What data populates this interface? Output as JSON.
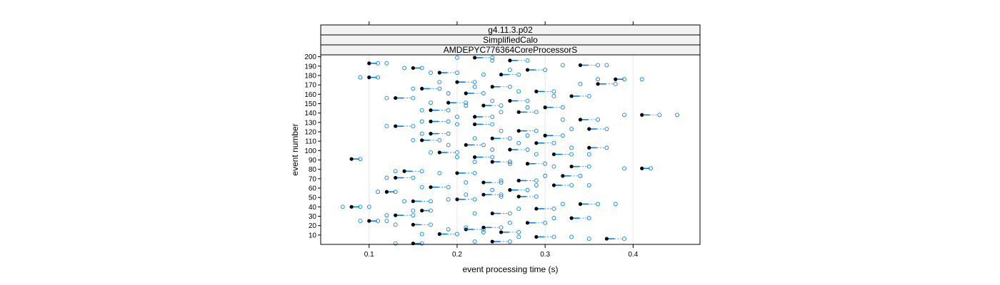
{
  "chart_data": {
    "type": "box-dot",
    "title": "",
    "strips": [
      "g4.11.3.p02",
      "SimplifiedCalo",
      "AMDEPYC776364CoreProcessorS"
    ],
    "xlabel": "event processing time (s)",
    "ylabel": "event number",
    "x_ticks": [
      0.1,
      0.2,
      0.3,
      0.4
    ],
    "y_ticks": [
      10,
      20,
      30,
      40,
      50,
      60,
      70,
      80,
      90,
      100,
      110,
      120,
      130,
      140,
      150,
      160,
      170,
      180,
      190,
      200
    ],
    "xlim": [
      0.045,
      0.476
    ],
    "ylim": [
      0,
      202
    ],
    "grid": "vertical",
    "colors": {
      "median": "#000000",
      "box": "#0080ff",
      "outlier": "#0080ff",
      "strip_bg": "#f2f2f2"
    },
    "rows": [
      {
        "event": 1,
        "median": 0.15,
        "outliers": [
          0.13,
          0.16
        ]
      },
      {
        "event": 3,
        "median": 0.24,
        "outliers": [
          0.22,
          0.26
        ]
      },
      {
        "event": 6,
        "median": 0.37,
        "outliers": [
          0.35,
          0.39
        ]
      },
      {
        "event": 8,
        "median": 0.29,
        "outliers": [
          0.27,
          0.31,
          0.33
        ]
      },
      {
        "event": 11,
        "median": 0.18,
        "outliers": [
          0.16,
          0.2
        ]
      },
      {
        "event": 13,
        "median": 0.25,
        "outliers": [
          0.23,
          0.27
        ]
      },
      {
        "event": 16,
        "median": 0.21,
        "outliers": [
          0.19,
          0.23
        ]
      },
      {
        "event": 18,
        "median": 0.23,
        "outliers": [
          0.21,
          0.25
        ]
      },
      {
        "event": 21,
        "median": 0.15,
        "outliers": [
          0.13,
          0.17
        ]
      },
      {
        "event": 23,
        "median": 0.28,
        "outliers": [
          0.26,
          0.3
        ]
      },
      {
        "event": 25,
        "median": 0.1,
        "outliers": [
          0.09,
          0.11,
          0.12
        ]
      },
      {
        "event": 28,
        "median": 0.33,
        "outliers": [
          0.31,
          0.35
        ]
      },
      {
        "event": 31,
        "median": 0.13,
        "outliers": [
          0.12,
          0.15
        ]
      },
      {
        "event": 33,
        "median": 0.24,
        "outliers": [
          0.22,
          0.26
        ]
      },
      {
        "event": 36,
        "median": 0.16,
        "outliers": [
          0.15,
          0.17
        ]
      },
      {
        "event": 38,
        "median": 0.29,
        "outliers": [
          0.27,
          0.31
        ]
      },
      {
        "event": 40,
        "median": 0.08,
        "outliers": [
          0.07,
          0.09,
          0.1
        ]
      },
      {
        "event": 43,
        "median": 0.34,
        "outliers": [
          0.32,
          0.36,
          0.38
        ]
      },
      {
        "event": 46,
        "median": 0.15,
        "outliers": [
          0.14,
          0.17
        ]
      },
      {
        "event": 48,
        "median": 0.2,
        "outliers": [
          0.19,
          0.22
        ]
      },
      {
        "event": 51,
        "median": 0.27,
        "outliers": [
          0.25,
          0.29
        ]
      },
      {
        "event": 53,
        "median": 0.23,
        "outliers": [
          0.21,
          0.25
        ]
      },
      {
        "event": 56,
        "median": 0.12,
        "outliers": [
          0.11,
          0.13
        ]
      },
      {
        "event": 58,
        "median": 0.26,
        "outliers": [
          0.24,
          0.28
        ]
      },
      {
        "event": 61,
        "median": 0.17,
        "outliers": [
          0.16,
          0.19
        ]
      },
      {
        "event": 63,
        "median": 0.31,
        "outliers": [
          0.29,
          0.33,
          0.35
        ]
      },
      {
        "event": 66,
        "median": 0.23,
        "outliers": [
          0.21,
          0.25
        ]
      },
      {
        "event": 68,
        "median": 0.27,
        "outliers": [
          0.25,
          0.29
        ]
      },
      {
        "event": 71,
        "median": 0.13,
        "outliers": [
          0.12,
          0.15
        ]
      },
      {
        "event": 73,
        "median": 0.32,
        "outliers": [
          0.3,
          0.34
        ]
      },
      {
        "event": 76,
        "median": 0.2,
        "outliers": [
          0.18,
          0.22
        ]
      },
      {
        "event": 78,
        "median": 0.14,
        "outliers": [
          0.13,
          0.16
        ]
      },
      {
        "event": 81,
        "median": 0.41,
        "outliers": [
          0.39,
          0.42
        ]
      },
      {
        "event": 83,
        "median": 0.33,
        "outliers": [
          0.31,
          0.35
        ]
      },
      {
        "event": 86,
        "median": 0.28,
        "outliers": [
          0.26,
          0.3
        ]
      },
      {
        "event": 88,
        "median": 0.24,
        "outliers": [
          0.22,
          0.26
        ]
      },
      {
        "event": 91,
        "median": 0.08,
        "outliers": [
          0.09
        ]
      },
      {
        "event": 93,
        "median": 0.22,
        "outliers": [
          0.2,
          0.24
        ]
      },
      {
        "event": 96,
        "median": 0.31,
        "outliers": [
          0.29,
          0.33,
          0.35
        ]
      },
      {
        "event": 98,
        "median": 0.18,
        "outliers": [
          0.17,
          0.2
        ]
      },
      {
        "event": 101,
        "median": 0.26,
        "outliers": [
          0.24,
          0.28
        ]
      },
      {
        "event": 103,
        "median": 0.35,
        "outliers": [
          0.33,
          0.37
        ]
      },
      {
        "event": 106,
        "median": 0.21,
        "outliers": [
          0.19,
          0.23
        ]
      },
      {
        "event": 108,
        "median": 0.29,
        "outliers": [
          0.27,
          0.31
        ]
      },
      {
        "event": 111,
        "median": 0.16,
        "outliers": [
          0.15,
          0.18
        ]
      },
      {
        "event": 113,
        "median": 0.24,
        "outliers": [
          0.22,
          0.26
        ]
      },
      {
        "event": 116,
        "median": 0.3,
        "outliers": [
          0.28,
          0.32
        ]
      },
      {
        "event": 118,
        "median": 0.17,
        "outliers": [
          0.16,
          0.19
        ]
      },
      {
        "event": 121,
        "median": 0.27,
        "outliers": [
          0.25,
          0.29
        ]
      },
      {
        "event": 123,
        "median": 0.35,
        "outliers": [
          0.33,
          0.37
        ]
      },
      {
        "event": 126,
        "median": 0.13,
        "outliers": [
          0.12,
          0.15
        ]
      },
      {
        "event": 128,
        "median": 0.22,
        "outliers": [
          0.2,
          0.24
        ]
      },
      {
        "event": 131,
        "median": 0.17,
        "outliers": [
          0.16,
          0.19
        ]
      },
      {
        "event": 133,
        "median": 0.34,
        "outliers": [
          0.32,
          0.36
        ]
      },
      {
        "event": 136,
        "median": 0.22,
        "outliers": [
          0.2,
          0.24
        ]
      },
      {
        "event": 138,
        "median": 0.41,
        "outliers": [
          0.39,
          0.43,
          0.45
        ]
      },
      {
        "event": 141,
        "median": 0.27,
        "outliers": [
          0.25,
          0.29
        ]
      },
      {
        "event": 143,
        "median": 0.17,
        "outliers": [
          0.16,
          0.19
        ]
      },
      {
        "event": 146,
        "median": 0.3,
        "outliers": [
          0.28,
          0.32
        ]
      },
      {
        "event": 148,
        "median": 0.23,
        "outliers": [
          0.21,
          0.25
        ]
      },
      {
        "event": 151,
        "median": 0.19,
        "outliers": [
          0.17,
          0.21
        ]
      },
      {
        "event": 153,
        "median": 0.26,
        "outliers": [
          0.24,
          0.28
        ]
      },
      {
        "event": 156,
        "median": 0.13,
        "outliers": [
          0.12,
          0.15
        ]
      },
      {
        "event": 158,
        "median": 0.33,
        "outliers": [
          0.31,
          0.35
        ]
      },
      {
        "event": 161,
        "median": 0.21,
        "outliers": [
          0.19,
          0.23
        ]
      },
      {
        "event": 163,
        "median": 0.29,
        "outliers": [
          0.27,
          0.31
        ]
      },
      {
        "event": 166,
        "median": 0.16,
        "outliers": [
          0.15,
          0.18
        ]
      },
      {
        "event": 168,
        "median": 0.24,
        "outliers": [
          0.22,
          0.26
        ]
      },
      {
        "event": 171,
        "median": 0.36,
        "outliers": [
          0.34,
          0.38
        ]
      },
      {
        "event": 173,
        "median": 0.2,
        "outliers": [
          0.18,
          0.22
        ]
      },
      {
        "event": 176,
        "median": 0.38,
        "outliers": [
          0.36,
          0.39,
          0.41
        ]
      },
      {
        "event": 178,
        "median": 0.1,
        "outliers": [
          0.09,
          0.11
        ]
      },
      {
        "event": 181,
        "median": 0.25,
        "outliers": [
          0.23,
          0.27
        ]
      },
      {
        "event": 183,
        "median": 0.18,
        "outliers": [
          0.17,
          0.2
        ]
      },
      {
        "event": 186,
        "median": 0.28,
        "outliers": [
          0.26,
          0.3
        ]
      },
      {
        "event": 188,
        "median": 0.15,
        "outliers": [
          0.14,
          0.16
        ]
      },
      {
        "event": 191,
        "median": 0.34,
        "outliers": [
          0.32,
          0.36,
          0.37
        ]
      },
      {
        "event": 193,
        "median": 0.1,
        "outliers": [
          0.11,
          0.12
        ]
      },
      {
        "event": 196,
        "median": 0.26,
        "outliers": [
          0.24,
          0.28
        ]
      },
      {
        "event": 199,
        "median": 0.22,
        "outliers": [
          0.2,
          0.24
        ]
      }
    ]
  }
}
